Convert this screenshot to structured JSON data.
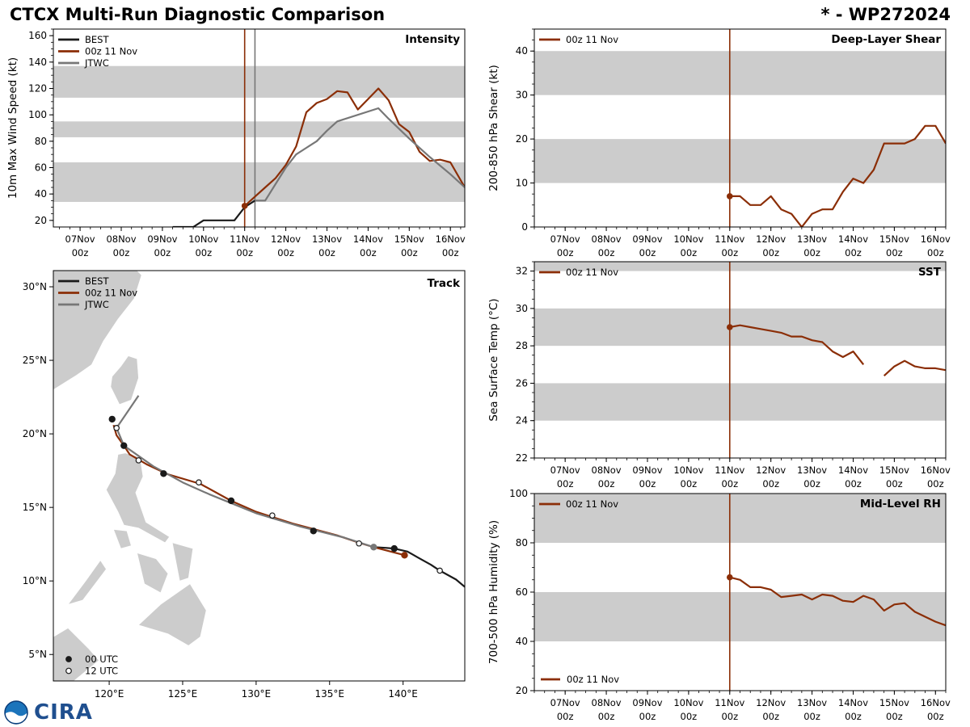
{
  "header": {
    "title": "CTCX Multi-Run Diagnostic Comparison",
    "storm_id": "* - WP272024"
  },
  "colors": {
    "best": "#1a1a1a",
    "run": "#8b2e07",
    "jtwc": "#777777",
    "shade": "#cccccc",
    "land": "#cccccc"
  },
  "logo": {
    "text": "CIRA",
    "icon": "noaa-logo-icon"
  },
  "time_ticks": [
    {
      "line1": "07Nov",
      "line2": "00z"
    },
    {
      "line1": "08Nov",
      "line2": "00z"
    },
    {
      "line1": "09Nov",
      "line2": "00z"
    },
    {
      "line1": "10Nov",
      "line2": "00z"
    },
    {
      "line1": "11Nov",
      "line2": "00z"
    },
    {
      "line1": "12Nov",
      "line2": "00z"
    },
    {
      "line1": "13Nov",
      "line2": "00z"
    },
    {
      "line1": "14Nov",
      "line2": "00z"
    },
    {
      "line1": "15Nov",
      "line2": "00z"
    },
    {
      "line1": "16Nov",
      "line2": "00z"
    }
  ],
  "chart_data": [
    {
      "id": "intensity",
      "type": "line",
      "title": "Intensity",
      "ylabel": "10m Max Wind Speed (kt)",
      "xlabel": "",
      "xunit": "days since 07Nov 00z",
      "xlim": [
        -0.65,
        9.35
      ],
      "ylim": [
        15,
        165
      ],
      "yticks": [
        20,
        40,
        60,
        80,
        100,
        120,
        140,
        160
      ],
      "bands": [
        [
          34,
          64
        ],
        [
          83,
          95
        ],
        [
          113,
          137
        ]
      ],
      "vlines": [
        {
          "x": 4.0,
          "color": "run"
        },
        {
          "x": 4.25,
          "color": "jtwc"
        }
      ],
      "legend": [
        {
          "label": "BEST",
          "color": "best"
        },
        {
          "label": "00z 11 Nov",
          "color": "run"
        },
        {
          "label": "JTWC",
          "color": "jtwc"
        }
      ],
      "series": [
        {
          "name": "BEST",
          "color": "best",
          "x": [
            2.25,
            2.75,
            3.0,
            3.75,
            4.0,
            4.25
          ],
          "y": [
            15,
            15,
            20,
            20,
            30,
            35
          ]
        },
        {
          "name": "00z 11 Nov",
          "color": "run",
          "marker_first": true,
          "x": [
            4.0,
            4.25,
            4.5,
            4.75,
            5.0,
            5.25,
            5.5,
            5.75,
            6.0,
            6.25,
            6.5,
            6.75,
            7.0,
            7.25,
            7.5,
            7.75,
            8.0,
            8.25,
            8.5,
            8.75,
            9.0,
            9.35
          ],
          "y": [
            31,
            38,
            45,
            52,
            62,
            76,
            102,
            109,
            112,
            118,
            117,
            104,
            112,
            120,
            111,
            93,
            87,
            72,
            65,
            66,
            64,
            45
          ]
        },
        {
          "name": "JTWC",
          "color": "jtwc",
          "x": [
            4.25,
            4.5,
            5.0,
            5.25,
            5.5,
            5.75,
            6.0,
            6.25,
            7.25,
            7.5,
            8.0,
            8.5,
            9.0,
            9.35
          ],
          "y": [
            35,
            35,
            60,
            70,
            75,
            80,
            88,
            95,
            105,
            97,
            82,
            68,
            55,
            45
          ]
        }
      ]
    },
    {
      "id": "shear",
      "type": "line",
      "title": "Deep-Layer Shear",
      "ylabel": "200-850 hPa Shear (kt)",
      "xlabel": "",
      "xlim": [
        -0.75,
        9.25
      ],
      "ylim": [
        0,
        45
      ],
      "yticks": [
        0,
        10,
        20,
        30,
        40
      ],
      "bands": [
        [
          10,
          20
        ],
        [
          30,
          40
        ]
      ],
      "vlines": [
        {
          "x": 4.0,
          "color": "run"
        }
      ],
      "legend": [
        {
          "label": "00z 11 Nov",
          "color": "run"
        }
      ],
      "series": [
        {
          "name": "00z 11 Nov",
          "color": "run",
          "marker_first": true,
          "x": [
            4.0,
            4.25,
            4.5,
            4.75,
            5.0,
            5.25,
            5.5,
            5.75,
            6.0,
            6.25,
            6.5,
            6.75,
            7.0,
            7.25,
            7.5,
            7.75,
            8.0,
            8.25,
            8.5,
            8.75,
            9.0,
            9.25
          ],
          "y": [
            7,
            7,
            5,
            5,
            7,
            4,
            3,
            0,
            3,
            4,
            4,
            8,
            11,
            10,
            13,
            19,
            19,
            19,
            20,
            23,
            23,
            19
          ]
        }
      ]
    },
    {
      "id": "sst",
      "type": "line",
      "title": "SST",
      "ylabel": "Sea Surface Temp (°C)",
      "xlabel": "",
      "xlim": [
        -0.75,
        9.25
      ],
      "ylim": [
        22,
        32.5
      ],
      "yticks": [
        22,
        24,
        26,
        28,
        30,
        32
      ],
      "bands": [
        [
          24,
          26
        ],
        [
          28,
          30
        ],
        [
          32,
          32.5
        ]
      ],
      "vlines": [
        {
          "x": 4.0,
          "color": "run"
        }
      ],
      "legend": [
        {
          "label": "00z 11 Nov",
          "color": "run"
        }
      ],
      "series": [
        {
          "name": "00z 11 Nov",
          "color": "run",
          "marker_first": true,
          "x": [
            4.0,
            4.25,
            4.5,
            4.75,
            5.0,
            5.25,
            5.5,
            5.75,
            6.0,
            6.25,
            6.5,
            6.75,
            7.0,
            7.25
          ],
          "y": [
            29.0,
            29.1,
            29.0,
            28.9,
            28.8,
            28.7,
            28.5,
            28.5,
            28.3,
            28.2,
            27.7,
            27.4,
            27.7,
            27.0
          ]
        },
        {
          "name": "00z 11 Nov (cont.)",
          "color": "run",
          "x": [
            7.75,
            8.0,
            8.25,
            8.5,
            8.75,
            9.0,
            9.25
          ],
          "y": [
            26.4,
            26.9,
            27.2,
            26.9,
            26.8,
            26.8,
            26.7
          ]
        }
      ]
    },
    {
      "id": "rh",
      "type": "line",
      "title": "Mid-Level RH",
      "ylabel": "700-500 hPa Humidity (%)",
      "xlabel": "",
      "xlim": [
        -0.75,
        9.25
      ],
      "ylim": [
        20,
        100
      ],
      "yticks": [
        20,
        40,
        60,
        80,
        100
      ],
      "bands": [
        [
          40,
          60
        ],
        [
          80,
          100
        ]
      ],
      "vlines": [
        {
          "x": 4.0,
          "color": "run"
        }
      ],
      "legend": [
        {
          "label": "00z 11 Nov",
          "color": "run"
        }
      ],
      "series": [
        {
          "name": "00z 11 Nov",
          "color": "run",
          "marker_first": true,
          "x": [
            4.0,
            4.25,
            4.5,
            4.75,
            5.0,
            5.25,
            5.5,
            5.75,
            6.0,
            6.25,
            6.5,
            6.75,
            7.0,
            7.25,
            7.5,
            7.75,
            8.0,
            8.25,
            8.5,
            8.75,
            9.0,
            9.25
          ],
          "y": [
            66,
            65,
            62,
            62,
            61,
            58,
            58.5,
            59,
            57,
            59,
            58.5,
            56.5,
            56,
            58.5,
            57,
            52.5,
            55,
            55.5,
            52,
            50,
            48,
            46.5
          ]
        }
      ]
    },
    {
      "id": "track",
      "type": "scatter",
      "title": "Track",
      "xlabel": "Longitude",
      "ylabel": "Latitude",
      "xlim": [
        116.2,
        144.2
      ],
      "ylim": [
        3.2,
        31.1
      ],
      "xticks": [
        120,
        125,
        130,
        135,
        140
      ],
      "xticklabels": [
        "120°E",
        "125°E",
        "130°E",
        "135°E",
        "140°E"
      ],
      "yticks": [
        5,
        10,
        15,
        20,
        25,
        30
      ],
      "yticklabels": [
        "5°N",
        "10°N",
        "15°N",
        "20°N",
        "25°N",
        "30°N"
      ],
      "legend": [
        {
          "label": "BEST",
          "color": "best"
        },
        {
          "label": "00z 11 Nov",
          "color": "run"
        },
        {
          "label": "JTWC",
          "color": "jtwc"
        }
      ],
      "marker_legend": [
        {
          "label": "00 UTC",
          "filled": true
        },
        {
          "label": "12 UTC",
          "filled": false
        }
      ],
      "series": [
        {
          "name": "BEST",
          "color": "best",
          "lon": [
            144.2,
            143.6,
            142.5,
            141.9,
            141.0,
            140.3,
            139.4,
            138.8,
            138.0
          ],
          "lat": [
            9.6,
            10.1,
            10.7,
            11.1,
            11.6,
            12.0,
            12.2,
            12.25,
            12.3
          ]
        },
        {
          "name": "00z 11 Nov",
          "color": "run",
          "lon": [
            140.1,
            138.0,
            137.0,
            135.5,
            132.5,
            130.0,
            128.3,
            126.2,
            124.0,
            122.6,
            121.4,
            121.0,
            120.5,
            120.3
          ],
          "lat": [
            11.75,
            12.3,
            12.6,
            13.1,
            13.9,
            14.7,
            15.45,
            16.6,
            17.25,
            17.9,
            18.6,
            19.2,
            19.9,
            20.6
          ]
        },
        {
          "name": "JTWC",
          "color": "jtwc",
          "lon": [
            138.0,
            136.0,
            133.0,
            130.0,
            126.8,
            125.0,
            123.0,
            121.0,
            120.5,
            122.0
          ],
          "lat": [
            12.3,
            12.95,
            13.7,
            14.6,
            15.9,
            16.7,
            17.8,
            19.2,
            20.4,
            22.6
          ]
        }
      ],
      "markers": [
        {
          "lon": 139.4,
          "lat": 12.2,
          "filled": true,
          "color": "best"
        },
        {
          "lon": 142.5,
          "lat": 10.7,
          "filled": false,
          "color": "best"
        },
        {
          "lon": 140.1,
          "lat": 11.75,
          "filled": true,
          "color": "run"
        },
        {
          "lon": 138.0,
          "lat": 12.3,
          "filled": true,
          "color": "jtwc"
        },
        {
          "lon": 137.0,
          "lat": 12.55,
          "filled": false,
          "color": "best"
        },
        {
          "lon": 133.9,
          "lat": 13.4,
          "filled": true,
          "color": "best"
        },
        {
          "lon": 131.1,
          "lat": 14.45,
          "filled": false,
          "color": "best"
        },
        {
          "lon": 128.3,
          "lat": 15.45,
          "filled": true,
          "color": "best"
        },
        {
          "lon": 126.1,
          "lat": 16.7,
          "filled": false,
          "color": "best"
        },
        {
          "lon": 123.7,
          "lat": 17.3,
          "filled": true,
          "color": "best"
        },
        {
          "lon": 122.0,
          "lat": 18.2,
          "filled": false,
          "color": "best"
        },
        {
          "lon": 121.0,
          "lat": 19.2,
          "filled": true,
          "color": "best"
        },
        {
          "lon": 120.5,
          "lat": 20.4,
          "filled": false,
          "color": "best"
        },
        {
          "lon": 120.2,
          "lat": 21.0,
          "filled": true,
          "color": "best"
        }
      ],
      "land": [
        {
          "name": "taiwan",
          "lon": [
            120.1,
            120.7,
            121.5,
            122.0,
            121.9,
            121.3,
            120.8,
            120.2,
            120.1
          ],
          "lat": [
            23.2,
            22.0,
            22.3,
            23.8,
            25.1,
            25.3,
            24.6,
            23.9,
            23.2
          ]
        },
        {
          "name": "china-coast",
          "lon": [
            116.2,
            117.8,
            118.8,
            119.6,
            120.6,
            121.7,
            122.2,
            121.9,
            120.6,
            119.4,
            118.4,
            117.3,
            116.2
          ],
          "lat": [
            23.0,
            24.0,
            24.7,
            26.3,
            27.8,
            29.2,
            30.8,
            31.1,
            31.1,
            31.1,
            31.1,
            31.1,
            31.1
          ]
        },
        {
          "name": "luzon",
          "lon": [
            120.6,
            121.1,
            122.1,
            122.3,
            121.8,
            122.5,
            124.1,
            123.8,
            122.0,
            121.0,
            120.6,
            119.8,
            120.4,
            120.6
          ],
          "lat": [
            18.6,
            18.7,
            18.4,
            17.1,
            16.0,
            14.0,
            13.0,
            12.6,
            13.6,
            13.8,
            14.7,
            16.2,
            17.3,
            18.6
          ]
        },
        {
          "name": "mindoro",
          "lon": [
            120.3,
            121.2,
            121.5,
            120.8,
            120.3
          ],
          "lat": [
            13.5,
            13.4,
            12.4,
            12.2,
            13.5
          ]
        },
        {
          "name": "samar-leyte",
          "lon": [
            124.3,
            125.7,
            125.4,
            124.8,
            124.3
          ],
          "lat": [
            12.6,
            12.2,
            10.2,
            10.0,
            12.6
          ]
        },
        {
          "name": "panay-negros-cebu",
          "lon": [
            121.9,
            123.2,
            124.0,
            123.5,
            122.4,
            121.9
          ],
          "lat": [
            11.9,
            11.5,
            10.5,
            9.2,
            9.8,
            11.9
          ]
        },
        {
          "name": "palawan",
          "lon": [
            117.2,
            118.2,
            119.8,
            119.4,
            118.4,
            117.2
          ],
          "lat": [
            8.4,
            8.7,
            10.8,
            11.4,
            10.0,
            8.4
          ]
        },
        {
          "name": "mindanao",
          "lon": [
            122.0,
            123.5,
            125.5,
            126.6,
            126.2,
            125.4,
            124.0,
            122.0
          ],
          "lat": [
            7.0,
            8.4,
            9.8,
            8.0,
            6.2,
            5.6,
            6.4,
            7.0
          ]
        },
        {
          "name": "borneo-tip",
          "lon": [
            116.2,
            117.2,
            118.6,
            119.3,
            117.6,
            116.2
          ],
          "lat": [
            6.2,
            6.8,
            5.4,
            4.6,
            3.2,
            3.2
          ]
        }
      ]
    }
  ]
}
